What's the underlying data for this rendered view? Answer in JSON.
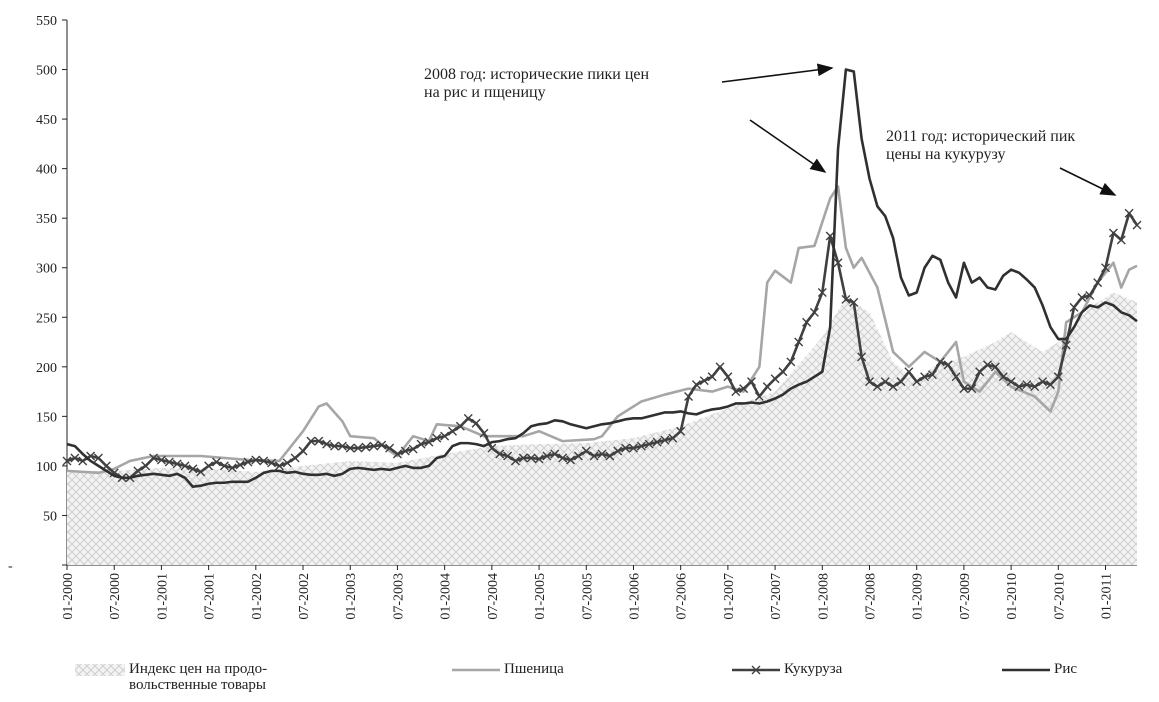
{
  "chart_data": {
    "type": "line",
    "ylim": [
      0,
      550
    ],
    "yticks": [
      {
        "value": 0,
        "label": "-"
      },
      50,
      100,
      150,
      200,
      250,
      300,
      350,
      400,
      450,
      500,
      550
    ],
    "xlim": [
      "01-2000",
      "05-2011"
    ],
    "xticks": [
      "01-2000",
      "07-2000",
      "01-2001",
      "07-2001",
      "01-2002",
      "07-2002",
      "01-2003",
      "07-2003",
      "01-2004",
      "07-2004",
      "01-2005",
      "07-2005",
      "01-2006",
      "07-2006",
      "01-2007",
      "07-2007",
      "01-2008",
      "07-2008",
      "01-2009",
      "07-2009",
      "01-2010",
      "07-2010",
      "01-2011"
    ],
    "annotations": [
      "2008 год: исторические пики цен\nна рис и пщеницу",
      "2011 год: исторический пик\nцены на кукурузу"
    ],
    "x": [
      "01-2000",
      "02-2000",
      "03-2000",
      "04-2000",
      "05-2000",
      "06-2000",
      "07-2000",
      "08-2000",
      "09-2000",
      "10-2000",
      "11-2000",
      "12-2000",
      "01-2001",
      "02-2001",
      "03-2001",
      "04-2001",
      "05-2001",
      "06-2001",
      "07-2001",
      "08-2001",
      "09-2001",
      "10-2001",
      "11-2001",
      "12-2001",
      "01-2002",
      "02-2002",
      "03-2002",
      "04-2002",
      "05-2002",
      "06-2002",
      "07-2002",
      "08-2002",
      "09-2002",
      "10-2002",
      "11-2002",
      "12-2002",
      "01-2003",
      "02-2003",
      "03-2003",
      "04-2003",
      "05-2003",
      "06-2003",
      "07-2003",
      "08-2003",
      "09-2003",
      "10-2003",
      "11-2003",
      "12-2003",
      "01-2004",
      "02-2004",
      "03-2004",
      "04-2004",
      "05-2004",
      "06-2004",
      "07-2004",
      "08-2004",
      "09-2004",
      "10-2004",
      "11-2004",
      "12-2004",
      "01-2005",
      "02-2005",
      "03-2005",
      "04-2005",
      "05-2005",
      "06-2005",
      "07-2005",
      "08-2005",
      "09-2005",
      "10-2005",
      "11-2005",
      "12-2005",
      "01-2006",
      "02-2006",
      "03-2006",
      "04-2006",
      "05-2006",
      "06-2006",
      "07-2006",
      "08-2006",
      "09-2006",
      "10-2006",
      "11-2006",
      "12-2006",
      "01-2007",
      "02-2007",
      "03-2007",
      "04-2007",
      "05-2007",
      "06-2007",
      "07-2007",
      "08-2007",
      "09-2007",
      "10-2007",
      "11-2007",
      "12-2007",
      "01-2008",
      "02-2008",
      "03-2008",
      "04-2008",
      "05-2008",
      "06-2008",
      "07-2008",
      "08-2008",
      "09-2008",
      "10-2008",
      "11-2008",
      "12-2008",
      "01-2009",
      "02-2009",
      "03-2009",
      "04-2009",
      "05-2009",
      "06-2009",
      "07-2009",
      "08-2009",
      "09-2009",
      "10-2009",
      "11-2009",
      "12-2009",
      "01-2010",
      "02-2010",
      "03-2010",
      "04-2010",
      "05-2010",
      "06-2010",
      "07-2010",
      "08-2010",
      "09-2010",
      "10-2010",
      "11-2010",
      "12-2010",
      "01-2011",
      "02-2011",
      "03-2011",
      "04-2011",
      "05-2011"
    ],
    "series": [
      {
        "name": "Индекс цен на продо-\nвольственные товары",
        "style": "area",
        "color": "#c8c8c8",
        "x": [
          "01-2000",
          "07-2000",
          "01-2001",
          "07-2001",
          "01-2002",
          "07-2002",
          "01-2003",
          "07-2003",
          "01-2004",
          "07-2004",
          "01-2005",
          "07-2005",
          "01-2006",
          "07-2006",
          "01-2007",
          "07-2007",
          "01-2008",
          "04-2008",
          "07-2008",
          "10-2008",
          "01-2009",
          "03-2009",
          "07-2009",
          "11-2009",
          "01-2010",
          "05-2010",
          "07-2010",
          "11-2010",
          "02-2011",
          "05-2011"
        ],
        "values": [
          95,
          95,
          98,
          97,
          94,
          100,
          105,
          103,
          112,
          120,
          122,
          123,
          128,
          140,
          158,
          175,
          230,
          270,
          255,
          205,
          185,
          200,
          210,
          225,
          235,
          215,
          225,
          260,
          275,
          265
        ]
      },
      {
        "name": "Пшеница",
        "style": "line",
        "color": "#a6a6a6",
        "x": [
          "01-2000",
          "05-2000",
          "07-2000",
          "09-2000",
          "12-2000",
          "06-2001",
          "12-2001",
          "04-2002",
          "07-2002",
          "09-2002",
          "10-2002",
          "12-2002",
          "01-2003",
          "04-2003",
          "06-2003",
          "07-2003",
          "09-2003",
          "11-2003",
          "12-2003",
          "03-2004",
          "06-2004",
          "11-2004",
          "01-2005",
          "04-2005",
          "08-2005",
          "09-2005",
          "11-2005",
          "02-2006",
          "05-2006",
          "08-2006",
          "11-2006",
          "01-2007",
          "03-2007",
          "05-2007",
          "06-2007",
          "07-2007",
          "09-2007",
          "10-2007",
          "12-2007",
          "02-2008",
          "03-2008",
          "04-2008",
          "05-2008",
          "06-2008",
          "08-2008",
          "10-2008",
          "12-2008",
          "02-2009",
          "04-2009",
          "06-2009",
          "07-2009",
          "09-2009",
          "11-2009",
          "01-2010",
          "04-2010",
          "06-2010",
          "07-2010",
          "08-2010",
          "10-2010",
          "12-2010",
          "02-2011",
          "03-2011",
          "04-2011",
          "05-2011"
        ],
        "values": [
          95,
          93,
          97,
          105,
          110,
          110,
          106,
          105,
          135,
          160,
          163,
          145,
          130,
          128,
          115,
          110,
          130,
          125,
          142,
          140,
          130,
          130,
          135,
          125,
          127,
          130,
          150,
          165,
          172,
          178,
          175,
          180,
          175,
          200,
          285,
          297,
          285,
          320,
          322,
          370,
          382,
          320,
          300,
          310,
          280,
          215,
          200,
          215,
          205,
          225,
          185,
          175,
          195,
          180,
          170,
          155,
          175,
          245,
          255,
          285,
          305,
          280,
          298,
          302
        ]
      },
      {
        "name": "Кукуруза",
        "style": "line",
        "marker": "x",
        "color": "#404040",
        "values": [
          105,
          108,
          105,
          110,
          108,
          100,
          93,
          88,
          88,
          95,
          100,
          108,
          106,
          104,
          102,
          100,
          97,
          94,
          100,
          104,
          100,
          98,
          101,
          104,
          106,
          105,
          103,
          100,
          103,
          108,
          115,
          125,
          125,
          122,
          120,
          120,
          118,
          118,
          119,
          120,
          121,
          118,
          112,
          115,
          117,
          122,
          124,
          128,
          130,
          135,
          140,
          148,
          143,
          133,
          118,
          112,
          110,
          105,
          108,
          108,
          107,
          110,
          112,
          108,
          106,
          110,
          115,
          110,
          112,
          110,
          115,
          118,
          118,
          120,
          122,
          124,
          126,
          128,
          135,
          170,
          182,
          186,
          190,
          200,
          190,
          175,
          178,
          185,
          170,
          180,
          188,
          195,
          205,
          225,
          245,
          255,
          275,
          332,
          305,
          268,
          265,
          210,
          185,
          180,
          185,
          180,
          185,
          195,
          185,
          190,
          192,
          205,
          202,
          190,
          178,
          178,
          195,
          202,
          200,
          190,
          185,
          180,
          182,
          180,
          185,
          182,
          190,
          222,
          260,
          270,
          272,
          285,
          300,
          335,
          328,
          355,
          343
        ]
      },
      {
        "name": "Рис",
        "style": "line",
        "color": "#303030",
        "values": [
          122,
          120,
          112,
          105,
          100,
          95,
          90,
          88,
          88,
          90,
          91,
          92,
          91,
          90,
          92,
          88,
          79,
          80,
          82,
          83,
          83,
          84,
          84,
          84,
          88,
          93,
          95,
          95,
          93,
          94,
          92,
          91,
          91,
          92,
          90,
          92,
          97,
          98,
          97,
          96,
          97,
          96,
          98,
          100,
          98,
          98,
          100,
          108,
          110,
          120,
          123,
          123,
          122,
          120,
          124,
          125,
          127,
          128,
          133,
          140,
          142,
          143,
          146,
          145,
          142,
          140,
          138,
          140,
          142,
          143,
          145,
          147,
          148,
          148,
          150,
          152,
          154,
          154,
          155,
          153,
          152,
          155,
          157,
          158,
          160,
          163,
          163,
          164,
          163,
          165,
          168,
          172,
          178,
          182,
          185,
          190,
          195,
          240,
          420,
          500,
          498,
          430,
          390,
          362,
          352,
          330,
          290,
          272,
          275,
          300,
          312,
          308,
          285,
          270,
          305,
          285,
          290,
          280,
          278,
          292,
          298,
          295,
          288,
          280,
          262,
          240,
          228,
          228,
          240,
          255,
          262,
          260,
          265,
          262,
          255,
          252,
          246
        ]
      }
    ]
  }
}
